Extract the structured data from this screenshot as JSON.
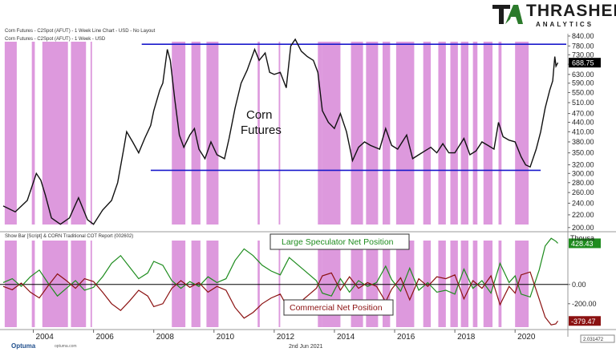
{
  "header": {
    "top_title": "Corn Futures - C2Spot (AFUT) - 1 Week Line Chart - USD - No Layout",
    "price_pane_title": "Corn Futures - C2Spot (AFUT) - 1 Week - USD",
    "cot_pane_title": "Show Bar [Script] & CORN Traditional COT Report (002602)"
  },
  "logo": {
    "main": "THRASHER",
    "sub": "ANALYTICS"
  },
  "footer": {
    "brand": "Optuma",
    "small": "optuma.com",
    "date": "2nd Jun 2021",
    "last_box": "2.031472"
  },
  "colors": {
    "price_line": "#111111",
    "channel_line": "#1a1acc",
    "shade": "#dd99dd",
    "spec_line": "#1e8c1e",
    "comm_line": "#8b1111",
    "zero_line": "#000000",
    "price_box": "#000000",
    "spec_box": "#1e8c1e",
    "comm_box": "#8b1111"
  },
  "chart_data": [
    {
      "type": "line",
      "title": "Corn Futures",
      "scale": "log",
      "ylim": [
        195,
        855
      ],
      "y_ticks": [
        "840.00",
        "780.00",
        "730.00",
        "680.00",
        "630.00",
        "590.00",
        "550.00",
        "510.00",
        "470.00",
        "440.00",
        "410.00",
        "380.00",
        "350.00",
        "320.00",
        "300.00",
        "280.00",
        "260.00",
        "240.00",
        "220.00",
        "200.00"
      ],
      "x_ticks": [
        "2004",
        "2006",
        "2008",
        "2010",
        "2012",
        "2014",
        "2016",
        "2018",
        "2020"
      ],
      "last_value_label": "688.75",
      "channel_levels": [
        790,
        307
      ],
      "series": [
        {
          "name": "Corn Futures",
          "points": [
            [
              2003.0,
              235
            ],
            [
              2003.4,
              225
            ],
            [
              2003.8,
              245
            ],
            [
              2004.1,
              300
            ],
            [
              2004.25,
              285
            ],
            [
              2004.4,
              255
            ],
            [
              2004.6,
              215
            ],
            [
              2004.9,
              205
            ],
            [
              2005.2,
              215
            ],
            [
              2005.5,
              250
            ],
            [
              2005.8,
              212
            ],
            [
              2006.0,
              205
            ],
            [
              2006.3,
              228
            ],
            [
              2006.6,
              245
            ],
            [
              2006.8,
              280
            ],
            [
              2007.0,
              360
            ],
            [
              2007.1,
              410
            ],
            [
              2007.3,
              380
            ],
            [
              2007.5,
              350
            ],
            [
              2007.7,
              390
            ],
            [
              2007.9,
              430
            ],
            [
              2008.0,
              480
            ],
            [
              2008.2,
              560
            ],
            [
              2008.3,
              590
            ],
            [
              2008.45,
              760
            ],
            [
              2008.55,
              700
            ],
            [
              2008.7,
              520
            ],
            [
              2008.85,
              400
            ],
            [
              2009.0,
              365
            ],
            [
              2009.2,
              400
            ],
            [
              2009.35,
              420
            ],
            [
              2009.5,
              360
            ],
            [
              2009.7,
              335
            ],
            [
              2009.9,
              380
            ],
            [
              2010.1,
              345
            ],
            [
              2010.35,
              335
            ],
            [
              2010.5,
              390
            ],
            [
              2010.7,
              490
            ],
            [
              2010.9,
              590
            ],
            [
              2011.1,
              650
            ],
            [
              2011.35,
              760
            ],
            [
              2011.5,
              700
            ],
            [
              2011.7,
              740
            ],
            [
              2011.85,
              640
            ],
            [
              2012.0,
              630
            ],
            [
              2012.2,
              640
            ],
            [
              2012.4,
              570
            ],
            [
              2012.55,
              780
            ],
            [
              2012.7,
              820
            ],
            [
              2012.9,
              750
            ],
            [
              2013.1,
              720
            ],
            [
              2013.3,
              700
            ],
            [
              2013.45,
              640
            ],
            [
              2013.6,
              480
            ],
            [
              2013.8,
              440
            ],
            [
              2014.0,
              420
            ],
            [
              2014.2,
              470
            ],
            [
              2014.4,
              410
            ],
            [
              2014.6,
              330
            ],
            [
              2014.8,
              365
            ],
            [
              2015.0,
              380
            ],
            [
              2015.2,
              370
            ],
            [
              2015.5,
              360
            ],
            [
              2015.7,
              420
            ],
            [
              2015.9,
              370
            ],
            [
              2016.1,
              360
            ],
            [
              2016.4,
              400
            ],
            [
              2016.6,
              335
            ],
            [
              2016.8,
              345
            ],
            [
              2017.0,
              355
            ],
            [
              2017.2,
              365
            ],
            [
              2017.4,
              350
            ],
            [
              2017.6,
              375
            ],
            [
              2017.8,
              350
            ],
            [
              2018.0,
              350
            ],
            [
              2018.3,
              390
            ],
            [
              2018.5,
              345
            ],
            [
              2018.7,
              355
            ],
            [
              2018.9,
              380
            ],
            [
              2019.1,
              370
            ],
            [
              2019.3,
              360
            ],
            [
              2019.45,
              440
            ],
            [
              2019.6,
              395
            ],
            [
              2019.8,
              385
            ],
            [
              2020.0,
              380
            ],
            [
              2020.2,
              340
            ],
            [
              2020.35,
              320
            ],
            [
              2020.5,
              315
            ],
            [
              2020.7,
              360
            ],
            [
              2020.85,
              410
            ],
            [
              2021.0,
              490
            ],
            [
              2021.15,
              560
            ],
            [
              2021.25,
              600
            ],
            [
              2021.32,
              720
            ],
            [
              2021.36,
              670
            ],
            [
              2021.42,
              688
            ]
          ]
        }
      ]
    },
    {
      "type": "line",
      "title": "",
      "ylim": [
        -460,
        540
      ],
      "y_ticks": [
        "0.00",
        "-200.00"
      ],
      "axis_unit": "Thousa",
      "zero_label": "0.00",
      "series": [
        {
          "name": "Large Speculator Net Position",
          "last_value_label": "428.43",
          "points": [
            [
              2003.0,
              20
            ],
            [
              2003.3,
              60
            ],
            [
              2003.6,
              -20
            ],
            [
              2003.9,
              80
            ],
            [
              2004.2,
              150
            ],
            [
              2004.5,
              10
            ],
            [
              2004.8,
              -120
            ],
            [
              2005.1,
              -40
            ],
            [
              2005.4,
              40
            ],
            [
              2005.7,
              -60
            ],
            [
              2006.0,
              -30
            ],
            [
              2006.3,
              80
            ],
            [
              2006.6,
              220
            ],
            [
              2006.9,
              300
            ],
            [
              2007.2,
              180
            ],
            [
              2007.5,
              60
            ],
            [
              2007.8,
              120
            ],
            [
              2008.0,
              240
            ],
            [
              2008.3,
              200
            ],
            [
              2008.6,
              40
            ],
            [
              2008.9,
              -40
            ],
            [
              2009.2,
              30
            ],
            [
              2009.5,
              -20
            ],
            [
              2009.8,
              80
            ],
            [
              2010.1,
              20
            ],
            [
              2010.4,
              60
            ],
            [
              2010.7,
              250
            ],
            [
              2011.0,
              370
            ],
            [
              2011.3,
              300
            ],
            [
              2011.6,
              200
            ],
            [
              2011.9,
              140
            ],
            [
              2012.2,
              100
            ],
            [
              2012.5,
              280
            ],
            [
              2012.8,
              200
            ],
            [
              2013.1,
              120
            ],
            [
              2013.4,
              40
            ],
            [
              2013.6,
              -90
            ],
            [
              2013.9,
              -120
            ],
            [
              2014.2,
              60
            ],
            [
              2014.5,
              -80
            ],
            [
              2014.8,
              40
            ],
            [
              2015.1,
              -20
            ],
            [
              2015.4,
              20
            ],
            [
              2015.7,
              190
            ],
            [
              2015.9,
              50
            ],
            [
              2016.2,
              -70
            ],
            [
              2016.5,
              170
            ],
            [
              2016.8,
              -60
            ],
            [
              2017.1,
              20
            ],
            [
              2017.4,
              -80
            ],
            [
              2017.7,
              -60
            ],
            [
              2018.0,
              -100
            ],
            [
              2018.3,
              160
            ],
            [
              2018.6,
              -40
            ],
            [
              2018.9,
              40
            ],
            [
              2019.2,
              -90
            ],
            [
              2019.5,
              220
            ],
            [
              2019.8,
              20
            ],
            [
              2020.0,
              90
            ],
            [
              2020.2,
              -100
            ],
            [
              2020.5,
              -130
            ],
            [
              2020.8,
              150
            ],
            [
              2021.0,
              400
            ],
            [
              2021.2,
              480
            ],
            [
              2021.35,
              450
            ],
            [
              2021.42,
              428
            ]
          ]
        },
        {
          "name": "Commercial Net Position",
          "last_value_label": "-379.47",
          "points": [
            [
              2003.0,
              -20
            ],
            [
              2003.3,
              -55
            ],
            [
              2003.6,
              15
            ],
            [
              2003.9,
              -80
            ],
            [
              2004.2,
              -140
            ],
            [
              2004.5,
              -10
            ],
            [
              2004.8,
              110
            ],
            [
              2005.1,
              40
            ],
            [
              2005.4,
              -40
            ],
            [
              2005.7,
              60
            ],
            [
              2006.0,
              30
            ],
            [
              2006.3,
              -80
            ],
            [
              2006.6,
              -200
            ],
            [
              2006.9,
              -270
            ],
            [
              2007.2,
              -170
            ],
            [
              2007.5,
              -60
            ],
            [
              2007.8,
              -120
            ],
            [
              2008.0,
              -230
            ],
            [
              2008.3,
              -200
            ],
            [
              2008.6,
              -40
            ],
            [
              2008.9,
              40
            ],
            [
              2009.2,
              -30
            ],
            [
              2009.5,
              20
            ],
            [
              2009.8,
              -80
            ],
            [
              2010.1,
              -20
            ],
            [
              2010.4,
              -60
            ],
            [
              2010.7,
              -240
            ],
            [
              2011.0,
              -350
            ],
            [
              2011.3,
              -290
            ],
            [
              2011.6,
              -200
            ],
            [
              2011.9,
              -140
            ],
            [
              2012.2,
              -100
            ],
            [
              2012.5,
              -270
            ],
            [
              2012.8,
              -200
            ],
            [
              2013.1,
              -120
            ],
            [
              2013.4,
              -40
            ],
            [
              2013.6,
              90
            ],
            [
              2013.9,
              120
            ],
            [
              2014.2,
              -60
            ],
            [
              2014.5,
              80
            ],
            [
              2014.8,
              -40
            ],
            [
              2015.1,
              20
            ],
            [
              2015.4,
              -20
            ],
            [
              2015.7,
              -180
            ],
            [
              2015.9,
              -50
            ],
            [
              2016.2,
              70
            ],
            [
              2016.5,
              -160
            ],
            [
              2016.8,
              60
            ],
            [
              2017.1,
              -20
            ],
            [
              2017.4,
              80
            ],
            [
              2017.7,
              60
            ],
            [
              2018.0,
              100
            ],
            [
              2018.3,
              -150
            ],
            [
              2018.6,
              40
            ],
            [
              2018.9,
              -40
            ],
            [
              2019.2,
              90
            ],
            [
              2019.5,
              -210
            ],
            [
              2019.8,
              -20
            ],
            [
              2020.0,
              -90
            ],
            [
              2020.2,
              100
            ],
            [
              2020.5,
              130
            ],
            [
              2020.8,
              -150
            ],
            [
              2021.0,
              -340
            ],
            [
              2021.2,
              -420
            ],
            [
              2021.35,
              -410
            ],
            [
              2021.42,
              -379
            ]
          ]
        }
      ]
    }
  ],
  "shaded_periods": [
    [
      2003.05,
      2003.45
    ],
    [
      2003.95,
      2004.05
    ],
    [
      2004.3,
      2005.15
    ],
    [
      2005.25,
      2005.75
    ],
    [
      2005.9,
      2005.95
    ],
    [
      2008.6,
      2009.05
    ],
    [
      2009.25,
      2009.55
    ],
    [
      2009.75,
      2010.15
    ],
    [
      2011.45,
      2011.52
    ],
    [
      2012.15,
      2012.2
    ],
    [
      2013.45,
      2013.6
    ],
    [
      2013.6,
      2014.2
    ],
    [
      2014.55,
      2014.95
    ],
    [
      2015.05,
      2015.45
    ],
    [
      2015.6,
      2015.85
    ],
    [
      2016.05,
      2016.65
    ],
    [
      2016.95,
      2017.2
    ],
    [
      2017.45,
      2017.7
    ],
    [
      2017.85,
      2018.1
    ],
    [
      2018.2,
      2018.45
    ],
    [
      2018.6,
      2018.75
    ],
    [
      2018.95,
      2019.25
    ],
    [
      2019.45,
      2019.55
    ],
    [
      2020.0,
      2020.45
    ]
  ],
  "annotations": {
    "price_label_line1": "Corn",
    "price_label_line2": "Futures",
    "spec_label": "Large Speculator Net Position",
    "comm_label": "Commercial Net Position"
  }
}
